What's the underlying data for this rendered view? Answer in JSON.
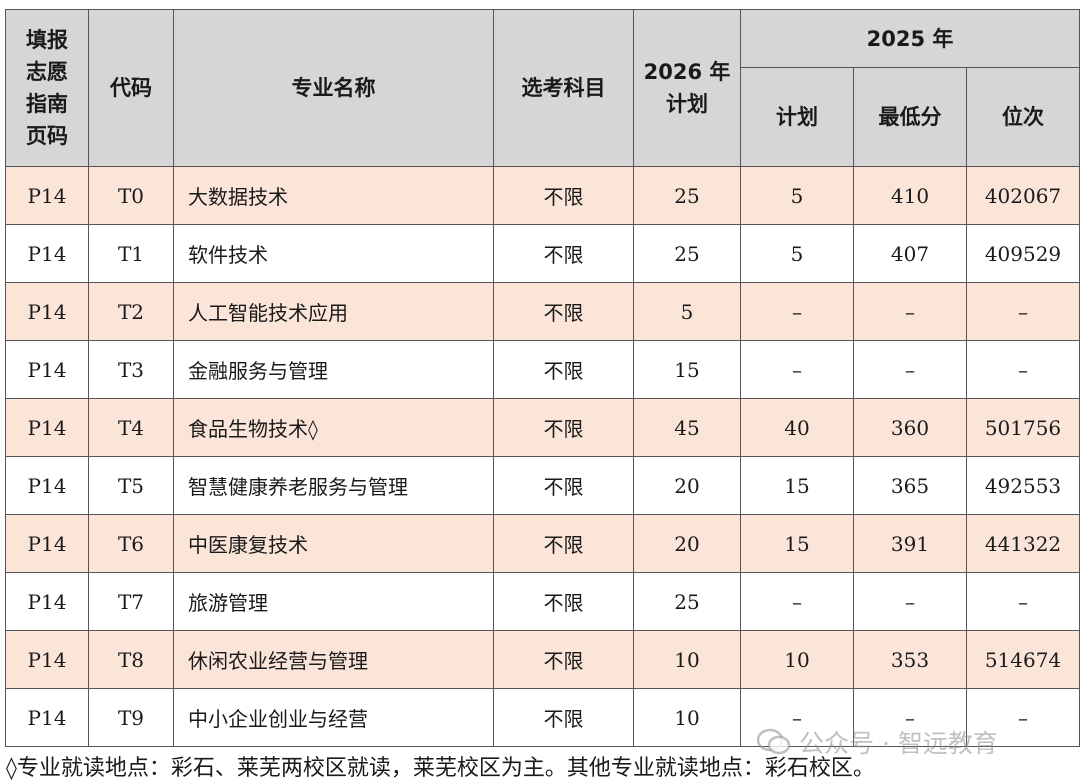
{
  "header": {
    "page_col": "填报\n志愿\n指南\n页码",
    "code": "代码",
    "major": "专业名称",
    "subjects": "选考科目",
    "plan2026": "2026 年\n计划",
    "year2025": "2025 年",
    "plan": "计划",
    "min_score": "最低分",
    "rank": "位次"
  },
  "rows": [
    {
      "page": "P14",
      "code": "T0",
      "major": "大数据技术",
      "subjects": "不限",
      "plan2026": "25",
      "plan2025": "5",
      "min_score": "410",
      "rank": "402067"
    },
    {
      "page": "P14",
      "code": "T1",
      "major": "软件技术",
      "subjects": "不限",
      "plan2026": "25",
      "plan2025": "5",
      "min_score": "407",
      "rank": "409529"
    },
    {
      "page": "P14",
      "code": "T2",
      "major": "人工智能技术应用",
      "subjects": "不限",
      "plan2026": "5",
      "plan2025": "–",
      "min_score": "–",
      "rank": "–"
    },
    {
      "page": "P14",
      "code": "T3",
      "major": "金融服务与管理",
      "subjects": "不限",
      "plan2026": "15",
      "plan2025": "–",
      "min_score": "–",
      "rank": "–"
    },
    {
      "page": "P14",
      "code": "T4",
      "major": "食品生物技术◊",
      "subjects": "不限",
      "plan2026": "45",
      "plan2025": "40",
      "min_score": "360",
      "rank": "501756"
    },
    {
      "page": "P14",
      "code": "T5",
      "major": "智慧健康养老服务与管理",
      "subjects": "不限",
      "plan2026": "20",
      "plan2025": "15",
      "min_score": "365",
      "rank": "492553"
    },
    {
      "page": "P14",
      "code": "T6",
      "major": "中医康复技术",
      "subjects": "不限",
      "plan2026": "20",
      "plan2025": "15",
      "min_score": "391",
      "rank": "441322"
    },
    {
      "page": "P14",
      "code": "T7",
      "major": "旅游管理",
      "subjects": "不限",
      "plan2026": "25",
      "plan2025": "–",
      "min_score": "–",
      "rank": "–"
    },
    {
      "page": "P14",
      "code": "T8",
      "major": "休闲农业经营与管理",
      "subjects": "不限",
      "plan2026": "10",
      "plan2025": "10",
      "min_score": "353",
      "rank": "514674"
    },
    {
      "page": "P14",
      "code": "T9",
      "major": "中小企业创业与经营",
      "subjects": "不限",
      "plan2026": "10",
      "plan2025": "–",
      "min_score": "–",
      "rank": "–"
    }
  ],
  "footnote": "◊专业就读地点：彩石、莱芜两校区就读，莱芜校区为主。其他专业就读地点：彩石校区。",
  "watermark": "公众号 · 智远教育",
  "colors": {
    "header_bg": "#d6d6d6",
    "alt_row_bg": "#fbe4d8"
  }
}
